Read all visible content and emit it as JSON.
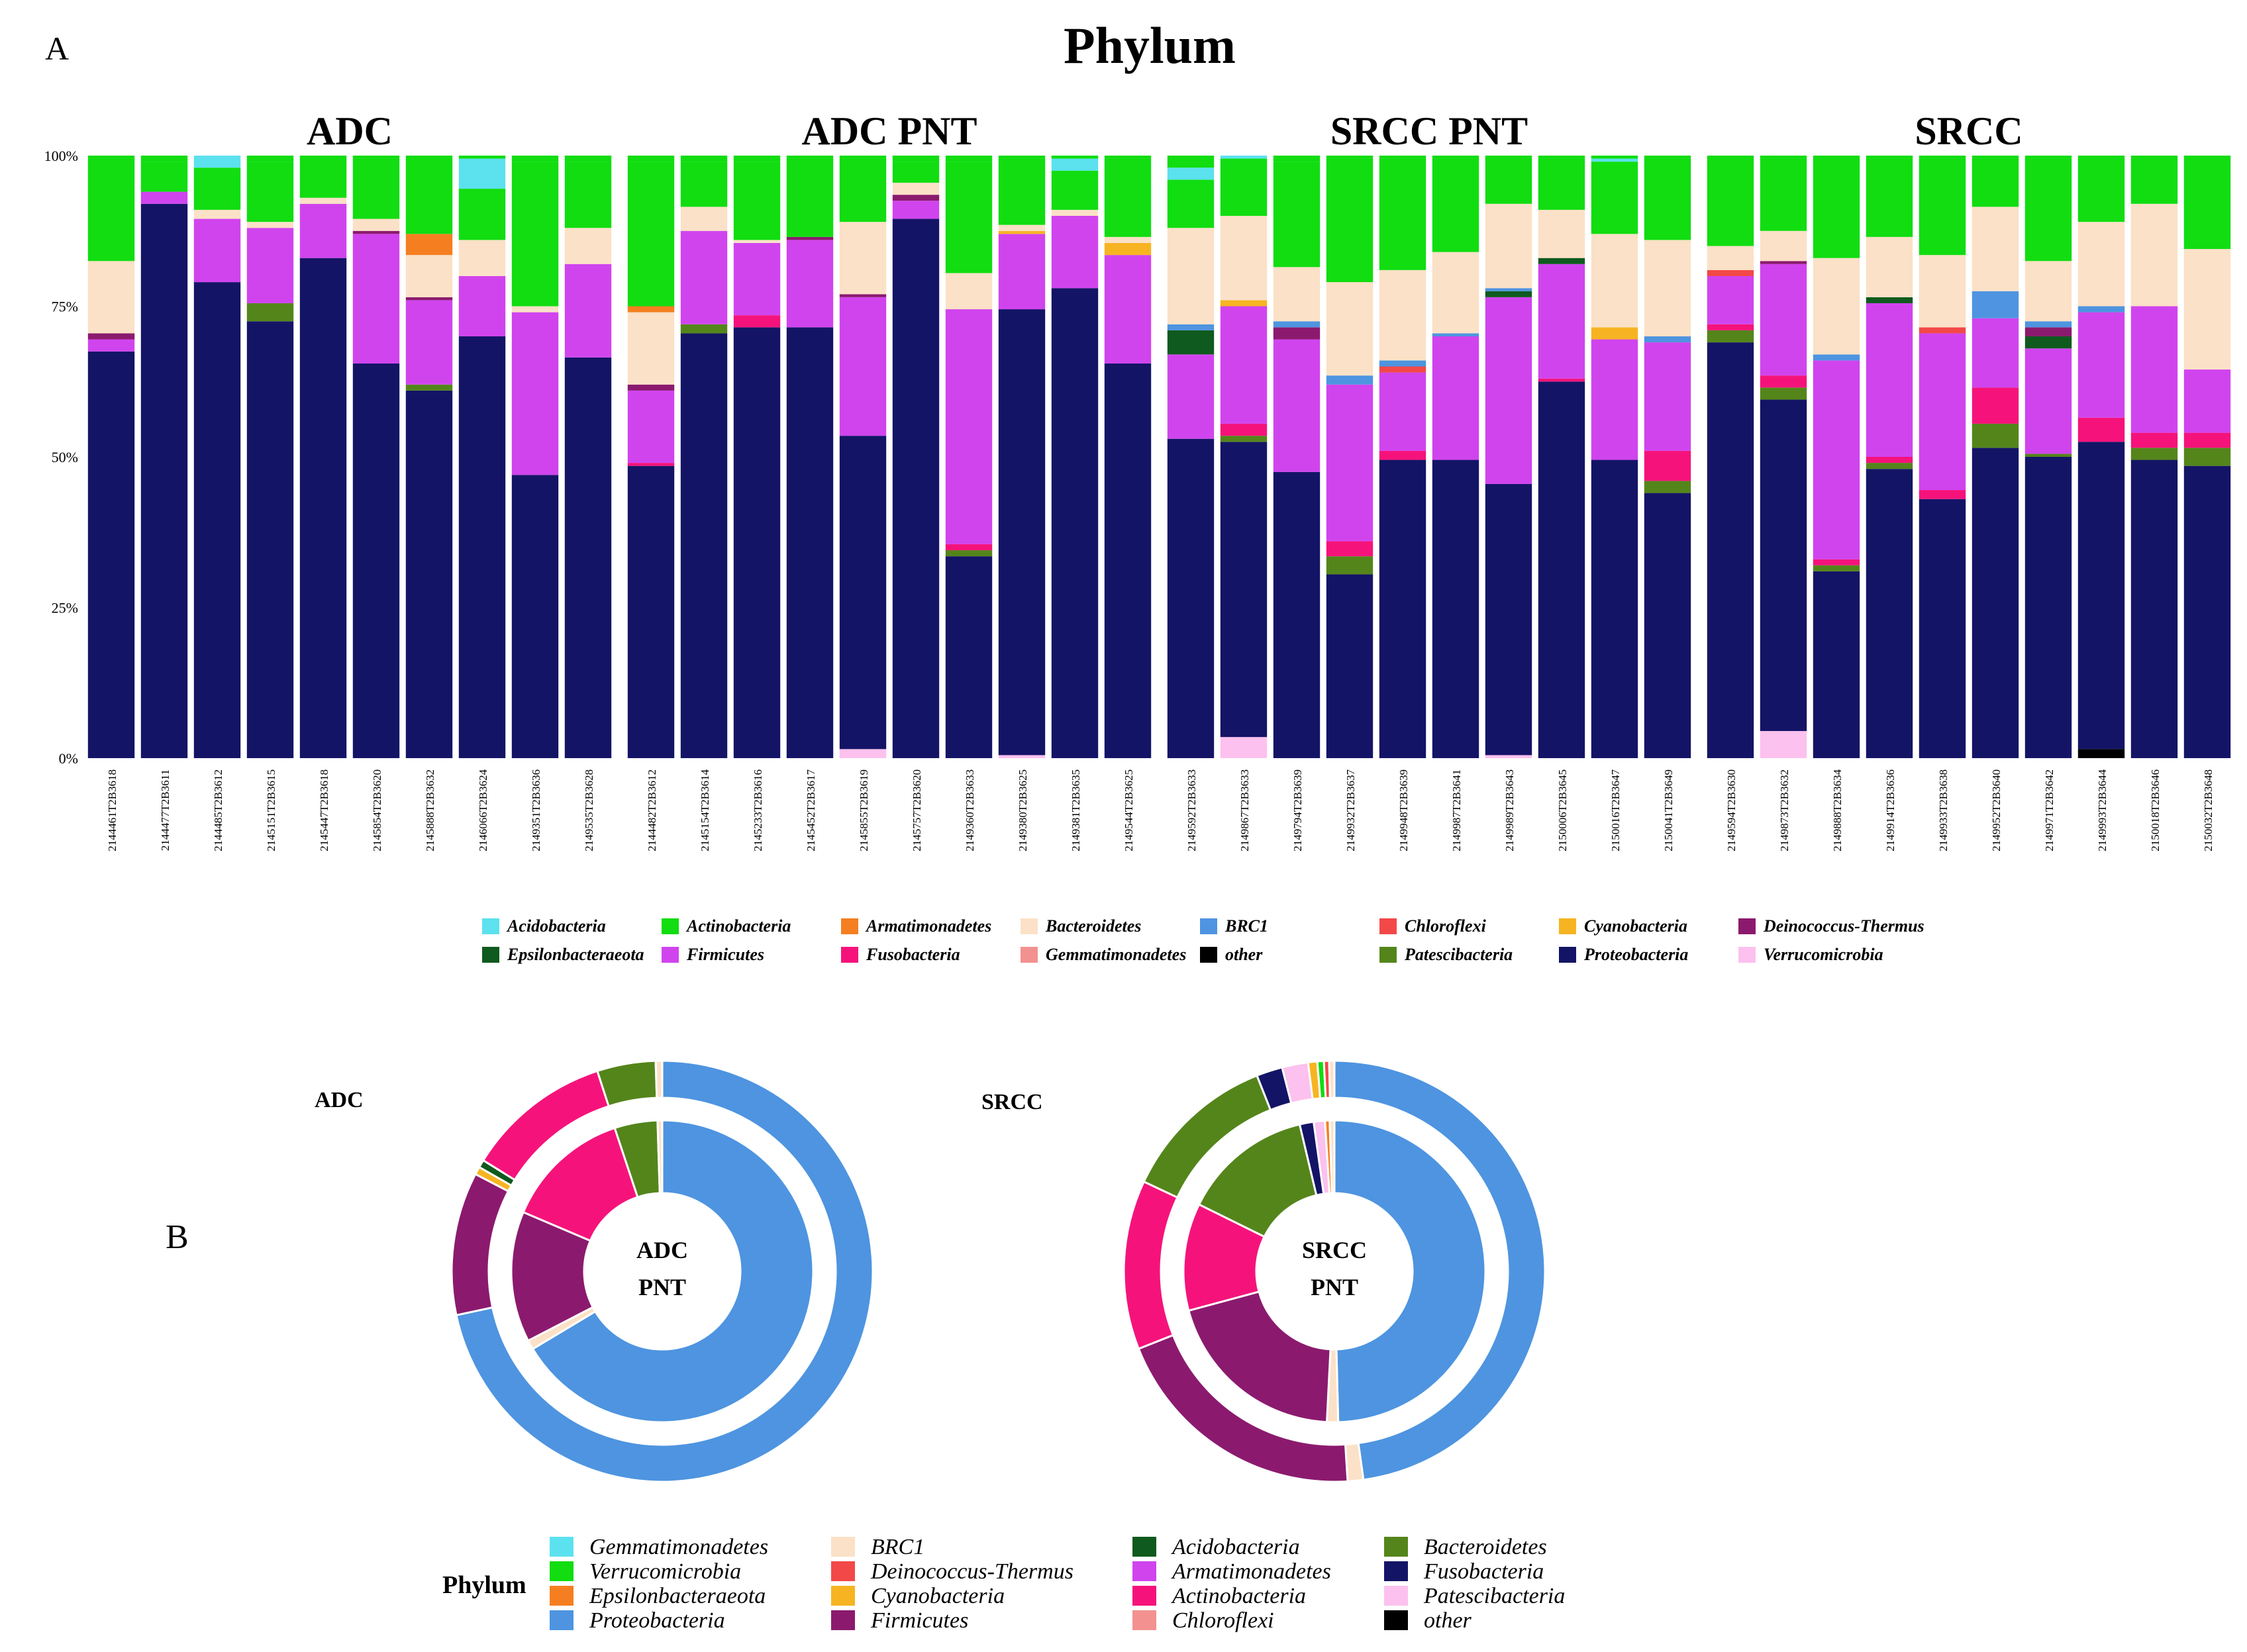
{
  "panel_a_label": "A",
  "panel_b_label": "B",
  "title": "Phylum",
  "chart_data": [
    {
      "type": "bar",
      "stacked": true,
      "title": "Phylum",
      "ylabel": "",
      "ylim": [
        0,
        100
      ],
      "yticks": [
        "0%",
        "25%",
        "50%",
        "75%",
        "100%"
      ],
      "legend_position": "bottom",
      "legend": [
        "Acidobacteria",
        "Actinobacteria",
        "Armatimonadetes",
        "Bacteroidetes",
        "BRC1",
        "Chloroflexi",
        "Cyanobacteria",
        "Deinococcus-Thermus",
        "Epsilonbacteraeota",
        "Firmicutes",
        "Fusobacteria",
        "Gemmatimonadetes",
        "other",
        "Patescibacteria",
        "Proteobacteria",
        "Verrucomicrobia"
      ],
      "colors": {
        "Acidobacteria": "#5ce1ee",
        "Actinobacteria": "#11dd11",
        "Armatimonadetes": "#f57f20",
        "Bacteroidetes": "#fbe1c7",
        "BRC1": "#4e94e0",
        "Chloroflexi": "#f34848",
        "Cyanobacteria": "#f7b422",
        "Deinococcus-Thermus": "#8b1a6e",
        "Epsilonbacteraeota": "#0f5a1e",
        "Firmicutes": "#d044ee",
        "Fusobacteria": "#f5137b",
        "Gemmatimonadetes": "#f39191",
        "other": "#000000",
        "Patescibacteria": "#54851b",
        "Proteobacteria": "#141466",
        "Verrucomicrobia": "#fcc1ee"
      },
      "facets": [
        {
          "name": "ADC",
          "samples": [
            {
              "id": "2144461T2B3618",
              "values": {
                "Proteobacteria": 67.5,
                "Firmicutes": 2,
                "Deinococcus-Thermus": 1,
                "Bacteroidetes": 12,
                "Actinobacteria": 17
              }
            },
            {
              "id": "2144477T2B3611",
              "values": {
                "Proteobacteria": 92,
                "Firmicutes": 2,
                "Actinobacteria": 5
              }
            },
            {
              "id": "2144485T2B3612",
              "values": {
                "Proteobacteria": 79,
                "Firmicutes": 10.5,
                "Bacteroidetes": 1.5,
                "Actinobacteria": 7,
                "Acidobacteria": 2
              }
            },
            {
              "id": "2145151T2B3615",
              "values": {
                "Proteobacteria": 72.5,
                "Patescibacteria": 3,
                "Firmicutes": 12.5,
                "Bacteroidetes": 1,
                "Actinobacteria": 10
              }
            },
            {
              "id": "2145447T2B3618",
              "values": {
                "Proteobacteria": 83,
                "Firmicutes": 9,
                "Bacteroidetes": 1,
                "Actinobacteria": 7
              }
            },
            {
              "id": "2145854T2B3620",
              "values": {
                "Proteobacteria": 65.5,
                "Firmicutes": 21.5,
                "Deinococcus-Thermus": 0.5,
                "Bacteroidetes": 2,
                "Actinobacteria": 10
              }
            },
            {
              "id": "2145888T2B3632",
              "values": {
                "Proteobacteria": 61,
                "Patescibacteria": 1,
                "Firmicutes": 14,
                "Deinococcus-Thermus": 0.5,
                "Bacteroidetes": 7,
                "Armatimonadetes": 3.5,
                "Actinobacteria": 13
              }
            },
            {
              "id": "2146066T2B3624",
              "values": {
                "Proteobacteria": 70,
                "Firmicutes": 10,
                "Bacteroidetes": 6,
                "Actinobacteria": 8.5,
                "Acidobacteria": 5
              }
            },
            {
              "id": "2149351T2B3636",
              "values": {
                "Proteobacteria": 47,
                "Firmicutes": 27,
                "Bacteroidetes": 1,
                "Actinobacteria": 24
              }
            },
            {
              "id": "2149535T2B3628",
              "values": {
                "Proteobacteria": 66.5,
                "Firmicutes": 15.5,
                "Bacteroidetes": 6,
                "Actinobacteria": 11
              }
            }
          ]
        },
        {
          "name": "ADC PNT",
          "samples": [
            {
              "id": "2144482T2B3612",
              "values": {
                "Proteobacteria": 48.5,
                "Firmicutes": 12,
                "Deinococcus-Thermus": 1,
                "Fusobacteria": 0.5,
                "Armatimonadetes": 1,
                "Bacteroidetes": 12,
                "Actinobacteria": 24
              }
            },
            {
              "id": "2145154T2B3614",
              "values": {
                "Proteobacteria": 70.5,
                "Patescibacteria": 1.5,
                "Firmicutes": 15.5,
                "Bacteroidetes": 4,
                "Actinobacteria": 7.5
              }
            },
            {
              "id": "2145233T2B3616",
              "values": {
                "Proteobacteria": 71.5,
                "Fusobacteria": 2,
                "Firmicutes": 12,
                "Bacteroidetes": 0.5,
                "Actinobacteria": 13
              }
            },
            {
              "id": "2145452T2B3617",
              "values": {
                "Proteobacteria": 71.5,
                "Firmicutes": 14.5,
                "Deinococcus-Thermus": 0.5,
                "Actinobacteria": 13
              }
            },
            {
              "id": "2145855T2B3619",
              "values": {
                "Verrucomicrobia": 1.5,
                "Proteobacteria": 52,
                "Firmicutes": 23,
                "Deinococcus-Thermus": 0.5,
                "Bacteroidetes": 12,
                "Actinobacteria": 10.5
              }
            },
            {
              "id": "2145757T2B3620",
              "values": {
                "Proteobacteria": 89.5,
                "Firmicutes": 3,
                "Deinococcus-Thermus": 1,
                "Bacteroidetes": 2,
                "Actinobacteria": 3.5
              }
            },
            {
              "id": "2149360T2B3633",
              "values": {
                "Proteobacteria": 33.5,
                "Patescibacteria": 1,
                "Fusobacteria": 1,
                "Firmicutes": 39,
                "Bacteroidetes": 6,
                "Actinobacteria": 18.5
              }
            },
            {
              "id": "2149380T2B3625",
              "values": {
                "Verrucomicrobia": 0.5,
                "Proteobacteria": 74,
                "Firmicutes": 12.5,
                "Cyanobacteria": 0.5,
                "Bacteroidetes": 1,
                "Actinobacteria": 11
              }
            },
            {
              "id": "2149381T2B3635",
              "values": {
                "Proteobacteria": 78,
                "Firmicutes": 12,
                "Bacteroidetes": 1,
                "Actinobacteria": 6.5,
                "Acidobacteria": 2
              }
            },
            {
              "id": "2149544T2B3625",
              "values": {
                "Proteobacteria": 65.5,
                "Firmicutes": 18,
                "Cyanobacteria": 2,
                "Bacteroidetes": 1,
                "Actinobacteria": 13
              }
            }
          ]
        },
        {
          "name": "SRCC PNT",
          "samples": [
            {
              "id": "2149592T2B3633",
              "values": {
                "Proteobacteria": 53,
                "Firmicutes": 14,
                "Epsilonbacteraeota": 4,
                "BRC1": 1,
                "Bacteroidetes": 16,
                "Actinobacteria": 8,
                "Acidobacteria": 2
              }
            },
            {
              "id": "2149867T2B3633",
              "values": {
                "Verrucomicrobia": 3.5,
                "Proteobacteria": 49,
                "Patescibacteria": 1,
                "Fusobacteria": 2,
                "Firmicutes": 19.5,
                "Cyanobacteria": 1,
                "Bacteroidetes": 14,
                "Actinobacteria": 9.5,
                "Acidobacteria": 0.5
              }
            },
            {
              "id": "2149794T2B3639",
              "values": {
                "Proteobacteria": 47.5,
                "Firmicutes": 22,
                "Deinococcus-Thermus": 2,
                "BRC1": 1,
                "Bacteroidetes": 9,
                "Actinobacteria": 17.5
              }
            },
            {
              "id": "2149932T2B3637",
              "values": {
                "Proteobacteria": 30.5,
                "Patescibacteria": 3,
                "Fusobacteria": 2.5,
                "Firmicutes": 26,
                "BRC1": 1.5,
                "Bacteroidetes": 15.5,
                "Actinobacteria": 20.5
              }
            },
            {
              "id": "2149948T2B3639",
              "values": {
                "Proteobacteria": 49.5,
                "Firmicutes": 13,
                "Fusobacteria": 1.5,
                "Chloroflexi": 1,
                "BRC1": 1,
                "Bacteroidetes": 15,
                "Actinobacteria": 18.5
              }
            },
            {
              "id": "2149987T2B3641",
              "values": {
                "Proteobacteria": 49.5,
                "Firmicutes": 20.5,
                "BRC1": 0.5,
                "Bacteroidetes": 13.5,
                "Actinobacteria": 15.5
              }
            },
            {
              "id": "2149989T2B3643",
              "values": {
                "Verrucomicrobia": 0.5,
                "Proteobacteria": 45,
                "Firmicutes": 31,
                "Epsilonbacteraeota": 1,
                "BRC1": 0.5,
                "Bacteroidetes": 14,
                "Actinobacteria": 8
              }
            },
            {
              "id": "2150006T2B3645",
              "values": {
                "Proteobacteria": 62.5,
                "Fusobacteria": 0.5,
                "Firmicutes": 19,
                "Epsilonbacteraeota": 1,
                "Bacteroidetes": 8,
                "Actinobacteria": 8.5
              }
            },
            {
              "id": "2150016T2B3647",
              "values": {
                "Proteobacteria": 49.5,
                "Firmicutes": 20,
                "Cyanobacteria": 2,
                "Bacteroidetes": 15.5,
                "Actinobacteria": 12,
                "Acidobacteria": 0.5
              }
            },
            {
              "id": "2150041T2B3649",
              "values": {
                "Proteobacteria": 44,
                "Patescibacteria": 2,
                "Fusobacteria": 5,
                "Firmicutes": 18,
                "BRC1": 1,
                "Bacteroidetes": 16,
                "Actinobacteria": 13.5
              }
            }
          ]
        },
        {
          "name": "SRCC",
          "samples": [
            {
              "id": "2149594T2B3630",
              "values": {
                "Proteobacteria": 69,
                "Patescibacteria": 2,
                "Firmicutes": 8,
                "Fusobacteria": 1,
                "Chloroflexi": 1,
                "Bacteroidetes": 4,
                "Actinobacteria": 15
              }
            },
            {
              "id": "2149873T2B3632",
              "values": {
                "Verrucomicrobia": 4.5,
                "Proteobacteria": 55,
                "Patescibacteria": 2,
                "Fusobacteria": 2,
                "Firmicutes": 18.5,
                "Deinococcus-Thermus": 0.5,
                "Bacteroidetes": 5,
                "Actinobacteria": 12
              }
            },
            {
              "id": "2149888T2B3634",
              "values": {
                "Proteobacteria": 31,
                "Patescibacteria": 1,
                "Fusobacteria": 1,
                "Firmicutes": 33,
                "BRC1": 1,
                "Bacteroidetes": 16,
                "Actinobacteria": 17
              }
            },
            {
              "id": "2149914T2B3636",
              "values": {
                "Proteobacteria": 48,
                "Patescibacteria": 1,
                "Fusobacteria": 1,
                "Firmicutes": 25.5,
                "Epsilonbacteraeota": 1,
                "Bacteroidetes": 10,
                "Actinobacteria": 13
              }
            },
            {
              "id": "2149933T2B3638",
              "values": {
                "Proteobacteria": 43,
                "Fusobacteria": 1.5,
                "Firmicutes": 26,
                "Chloroflexi": 1,
                "Bacteroidetes": 12,
                "Actinobacteria": 16
              }
            },
            {
              "id": "2149952T2B3640",
              "values": {
                "Proteobacteria": 51.5,
                "Patescibacteria": 4,
                "Fusobacteria": 6,
                "Firmicutes": 11.5,
                "BRC1": 4.5,
                "Bacteroidetes": 14,
                "Actinobacteria": 8
              }
            },
            {
              "id": "2149971T2B3642",
              "values": {
                "Proteobacteria": 50,
                "Patescibacteria": 0.5,
                "Epsilonbacteraeota": 2,
                "Deinococcus-Thermus": 1.5,
                "Firmicutes": 17.5,
                "BRC1": 1,
                "Bacteroidetes": 10,
                "Actinobacteria": 17
              }
            },
            {
              "id": "2149993T2B3644",
              "values": {
                "other": 1.5,
                "Proteobacteria": 51,
                "Fusobacteria": 4,
                "Firmicutes": 17.5,
                "BRC1": 1,
                "Bacteroidetes": 14,
                "Actinobacteria": 11
              }
            },
            {
              "id": "2150018T2B3646",
              "values": {
                "Proteobacteria": 49.5,
                "Patescibacteria": 2,
                "Fusobacteria": 2.5,
                "Firmicutes": 21,
                "Bacteroidetes": 17,
                "Actinobacteria": 8
              }
            },
            {
              "id": "2150032T2B3648",
              "values": {
                "Proteobacteria": 48.5,
                "Patescibacteria": 3,
                "Fusobacteria": 2.5,
                "Firmicutes": 10.5,
                "Bacteroidetes": 20,
                "Actinobacteria": 15.5
              }
            }
          ]
        }
      ]
    },
    {
      "type": "pie",
      "subtype": "donut",
      "title": "ADC",
      "center_label": [
        "ADC",
        "PNT"
      ],
      "series": [
        {
          "name": "outer",
          "slices": [
            {
              "label": "Proteobacteria",
              "value": 71.8
            },
            {
              "label": "Firmicutes",
              "value": 11
            },
            {
              "label": "Cyanobacteria",
              "value": 0.6
            },
            {
              "label": "Acidobacteria",
              "value": 0.6
            },
            {
              "label": "Actinobacteria",
              "value": 11.2
            },
            {
              "label": "Bacteroidetes",
              "value": 4.5
            },
            {
              "label": "BRC1",
              "value": 0.5
            }
          ]
        },
        {
          "name": "inner",
          "slices": [
            {
              "label": "Proteobacteria",
              "value": 66.4
            },
            {
              "label": "BRC1",
              "value": 1
            },
            {
              "label": "Firmicutes",
              "value": 14
            },
            {
              "label": "Actinobacteria",
              "value": 13.5
            },
            {
              "label": "Bacteroidetes",
              "value": 4.6
            },
            {
              "label": "BRC1",
              "value": 0.5
            }
          ]
        }
      ]
    },
    {
      "type": "pie",
      "subtype": "donut",
      "title": "SRCC",
      "center_label": [
        "SRCC",
        "PNT"
      ],
      "series": [
        {
          "name": "outer",
          "slices": [
            {
              "label": "Proteobacteria",
              "value": 47.8
            },
            {
              "label": "BRC1",
              "value": 1.2
            },
            {
              "label": "Firmicutes",
              "value": 20
            },
            {
              "label": "Actinobacteria",
              "value": 13
            },
            {
              "label": "Bacteroidetes",
              "value": 12
            },
            {
              "label": "Fusobacteria",
              "value": 2
            },
            {
              "label": "Patescibacteria",
              "value": 2
            },
            {
              "label": "Cyanobacteria",
              "value": 0.7
            },
            {
              "label": "Verrucomicrobia",
              "value": 0.5
            },
            {
              "label": "Deinococcus-Thermus",
              "value": 0.4
            },
            {
              "label": "BRC1",
              "value": 0.4
            }
          ]
        },
        {
          "name": "inner",
          "slices": [
            {
              "label": "Proteobacteria",
              "value": 49.6
            },
            {
              "label": "BRC1",
              "value": 1.2
            },
            {
              "label": "Firmicutes",
              "value": 20
            },
            {
              "label": "Actinobacteria",
              "value": 11.5
            },
            {
              "label": "Bacteroidetes",
              "value": 14
            },
            {
              "label": "Fusobacteria",
              "value": 1.5
            },
            {
              "label": "Patescibacteria",
              "value": 1.2
            },
            {
              "label": "Epsilonbacteraeota",
              "value": 0.5
            },
            {
              "label": "BRC1",
              "value": 0.5
            }
          ]
        }
      ]
    }
  ],
  "legend_b": {
    "title": "Phylum",
    "items": [
      {
        "label": "Gemmatimonadetes",
        "color": "#5ce1ee"
      },
      {
        "label": "Verrucomicrobia",
        "color": "#11dd11"
      },
      {
        "label": "Epsilonbacteraeota",
        "color": "#f57f20"
      },
      {
        "label": "Proteobacteria",
        "color": "#4e94e0"
      },
      {
        "label": "BRC1",
        "color": "#fbe1c7"
      },
      {
        "label": "Deinococcus-Thermus",
        "color": "#f34848"
      },
      {
        "label": "Cyanobacteria",
        "color": "#f7b422"
      },
      {
        "label": "Firmicutes",
        "color": "#8b1a6e"
      },
      {
        "label": "Acidobacteria",
        "color": "#0f5a1e"
      },
      {
        "label": "Armatimonadetes",
        "color": "#d044ee"
      },
      {
        "label": "Actinobacteria",
        "color": "#f5137b"
      },
      {
        "label": "Chloroflexi",
        "color": "#f39191"
      },
      {
        "label": "Bacteroidetes",
        "color": "#54851b"
      },
      {
        "label": "Fusobacteria",
        "color": "#141466"
      },
      {
        "label": "Patescibacteria",
        "color": "#fcc1ee"
      },
      {
        "label": "other",
        "color": "#000000"
      }
    ]
  }
}
